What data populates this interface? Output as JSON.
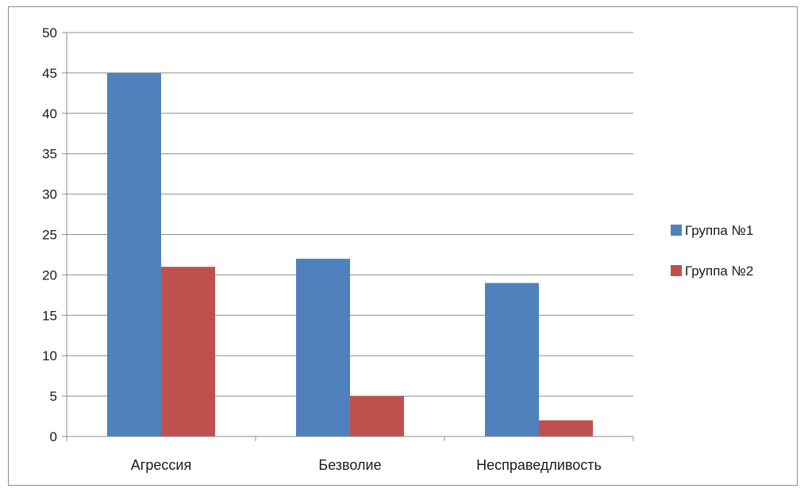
{
  "chart_data": {
    "type": "bar",
    "title": "",
    "xlabel": "",
    "ylabel": "",
    "categories": [
      "Агрессия",
      "Безволие",
      "Несправедливость"
    ],
    "series": [
      {
        "name": "Группа №1",
        "color": "#4f81bd",
        "values": [
          45,
          22,
          19
        ]
      },
      {
        "name": "Группа №2",
        "color": "#c0504d",
        "values": [
          21,
          5,
          2
        ]
      }
    ],
    "ylim": [
      0,
      50
    ],
    "yticks": [
      0,
      5,
      10,
      15,
      20,
      25,
      30,
      35,
      40,
      45,
      50
    ],
    "grid": true,
    "legend": "right"
  }
}
